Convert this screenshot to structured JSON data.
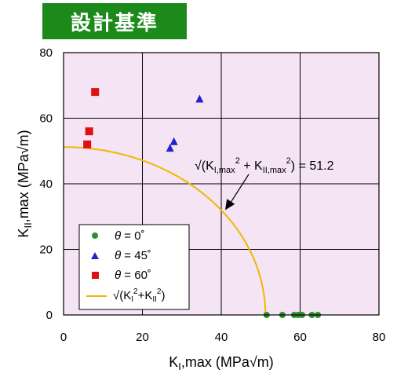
{
  "header": {
    "title": "設計基準"
  },
  "chart_data": {
    "type": "scatter",
    "xlabel": {
      "main": "K",
      "sub": "I",
      "rest": ",max (MPa√m)"
    },
    "ylabel": {
      "main": "K",
      "sub": "II",
      "rest": ",max (MPa√m)"
    },
    "xlim": [
      0,
      80
    ],
    "ylim": [
      0,
      80
    ],
    "xticks": [
      "0",
      "20",
      "40",
      "60",
      "80"
    ],
    "yticks": [
      "0",
      "20",
      "40",
      "60",
      "80"
    ],
    "grid": true,
    "legend_position": "bottom-left",
    "series": [
      {
        "name": "θ = 0˚",
        "marker": "circle",
        "color": "#2e8b2e",
        "x": [
          51.5,
          55.5,
          58.5,
          59.5,
          60.5,
          63,
          64.5
        ],
        "y": [
          0,
          0,
          0,
          0,
          0,
          0,
          0
        ]
      },
      {
        "name": "θ = 45˚",
        "marker": "triangle",
        "color": "#2222cc",
        "x": [
          27,
          28,
          34.5
        ],
        "y": [
          51,
          53,
          66
        ]
      },
      {
        "name": "θ = 60˚",
        "marker": "square",
        "color": "#dd1111",
        "x": [
          6,
          6.5,
          8
        ],
        "y": [
          52,
          56,
          68
        ]
      },
      {
        "name": "√(KI²+KII²)",
        "marker": "line",
        "color": "#f0b800",
        "radius": 51.2
      }
    ],
    "legend": [
      {
        "symbol": "circle",
        "color": "#2e8b2e",
        "theta": "θ",
        "rest": " = 0˚"
      },
      {
        "symbol": "triangle",
        "color": "#2222cc",
        "theta": "θ",
        "rest": " = 45˚"
      },
      {
        "symbol": "square",
        "color": "#dd1111",
        "theta": "θ",
        "rest": " = 60˚"
      },
      {
        "symbol": "line",
        "color": "#f0b800",
        "parts": [
          "√",
          "(K",
          "I",
          "2",
          "+K",
          "II",
          "2",
          ")"
        ]
      }
    ],
    "annotation": {
      "parts": [
        "√",
        "(K",
        "I,max",
        "2",
        " + K",
        "II,max",
        "2",
        ") = 51.2"
      ],
      "value": 51.2,
      "arrow_target": [
        41,
        32
      ]
    },
    "background_color": "#f4e4f4"
  }
}
